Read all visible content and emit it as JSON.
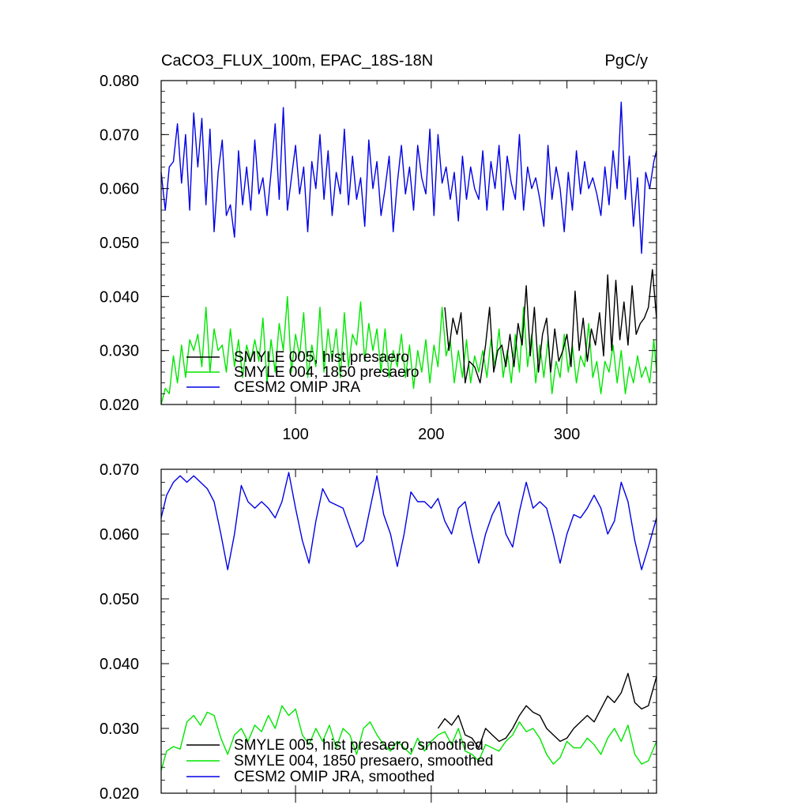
{
  "chart_data": [
    {
      "type": "line",
      "title": "CaCO3_FLUX_100m, EPAC_18S-18N",
      "units": "PgC/y",
      "xlim": [
        1,
        366
      ],
      "ylim": [
        0.02,
        0.08
      ],
      "yticks": [
        0.02,
        0.03,
        0.04,
        0.05,
        0.06,
        0.07,
        0.08
      ],
      "ytick_labels": [
        "0.020",
        "0.030",
        "0.040",
        "0.050",
        "0.060",
        "0.070",
        "0.080"
      ],
      "xticks": [
        100,
        200,
        300
      ],
      "xtick_labels": [
        "100",
        "200",
        "300"
      ],
      "legend_placement": "bottom-left",
      "series": [
        {
          "name": "SMYLE 005, hist presaero",
          "color": "#000000",
          "x": [
            210,
            213,
            216,
            219,
            222,
            225,
            228,
            232,
            236,
            240,
            243,
            246,
            249,
            252,
            255,
            258,
            261,
            264,
            267,
            270,
            273,
            276,
            279,
            282,
            285,
            288,
            291,
            294,
            297,
            300,
            303,
            306,
            309,
            312,
            315,
            318,
            321,
            324,
            327,
            330,
            333,
            336,
            339,
            342,
            345,
            348,
            351,
            354,
            357,
            360,
            363,
            366
          ],
          "values": [
            0.038,
            0.03,
            0.036,
            0.033,
            0.037,
            0.024,
            0.028,
            0.027,
            0.024,
            0.031,
            0.038,
            0.026,
            0.03,
            0.031,
            0.027,
            0.033,
            0.027,
            0.035,
            0.031,
            0.042,
            0.029,
            0.038,
            0.026,
            0.033,
            0.036,
            0.026,
            0.034,
            0.028,
            0.03,
            0.033,
            0.027,
            0.041,
            0.03,
            0.036,
            0.028,
            0.034,
            0.031,
            0.037,
            0.029,
            0.044,
            0.03,
            0.043,
            0.032,
            0.039,
            0.031,
            0.042,
            0.033,
            0.035,
            0.036,
            0.038,
            0.045,
            0.036
          ]
        },
        {
          "name": "SMYLE 004, 1850 presaero",
          "color": "#00e600",
          "x": [
            1,
            4,
            7,
            10,
            13,
            16,
            19,
            22,
            25,
            28,
            31,
            34,
            37,
            40,
            43,
            46,
            49,
            52,
            55,
            58,
            61,
            64,
            67,
            70,
            73,
            76,
            79,
            82,
            85,
            88,
            91,
            94,
            97,
            100,
            103,
            106,
            109,
            112,
            115,
            118,
            121,
            124,
            127,
            130,
            133,
            136,
            139,
            142,
            145,
            148,
            151,
            154,
            157,
            160,
            163,
            166,
            169,
            172,
            175,
            178,
            181,
            184,
            187,
            190,
            193,
            196,
            199,
            202,
            205,
            208,
            211,
            214,
            217,
            220,
            223,
            226,
            229,
            232,
            235,
            238,
            241,
            244,
            247,
            250,
            253,
            256,
            259,
            262,
            265,
            268,
            271,
            274,
            277,
            280,
            283,
            286,
            289,
            292,
            295,
            298,
            301,
            304,
            307,
            310,
            313,
            316,
            319,
            322,
            325,
            328,
            331,
            334,
            337,
            340,
            343,
            346,
            349,
            352,
            355,
            358,
            361,
            364,
            366
          ],
          "values": [
            0.02,
            0.023,
            0.022,
            0.029,
            0.024,
            0.031,
            0.025,
            0.032,
            0.03,
            0.033,
            0.027,
            0.038,
            0.026,
            0.034,
            0.03,
            0.031,
            0.026,
            0.034,
            0.027,
            0.032,
            0.025,
            0.031,
            0.028,
            0.032,
            0.028,
            0.036,
            0.024,
            0.032,
            0.026,
            0.035,
            0.03,
            0.04,
            0.026,
            0.033,
            0.029,
            0.037,
            0.025,
            0.031,
            0.027,
            0.038,
            0.026,
            0.034,
            0.028,
            0.034,
            0.025,
            0.037,
            0.027,
            0.033,
            0.031,
            0.039,
            0.028,
            0.035,
            0.03,
            0.034,
            0.026,
            0.034,
            0.025,
            0.03,
            0.027,
            0.033,
            0.025,
            0.031,
            0.023,
            0.03,
            0.026,
            0.032,
            0.024,
            0.031,
            0.027,
            0.038,
            0.029,
            0.032,
            0.024,
            0.03,
            0.025,
            0.032,
            0.024,
            0.029,
            0.026,
            0.03,
            0.025,
            0.032,
            0.027,
            0.034,
            0.025,
            0.03,
            0.024,
            0.033,
            0.026,
            0.038,
            0.027,
            0.033,
            0.024,
            0.031,
            0.025,
            0.032,
            0.022,
            0.028,
            0.025,
            0.033,
            0.026,
            0.031,
            0.024,
            0.029,
            0.027,
            0.035,
            0.025,
            0.028,
            0.022,
            0.028,
            0.026,
            0.031,
            0.024,
            0.03,
            0.022,
            0.027,
            0.024,
            0.029,
            0.025,
            0.027,
            0.024,
            0.032,
            0.026
          ]
        },
        {
          "name": "CESM2 OMIP JRA",
          "color": "#0000e6",
          "x": [
            1,
            4,
            7,
            10,
            13,
            16,
            19,
            22,
            25,
            28,
            31,
            34,
            37,
            40,
            43,
            46,
            49,
            52,
            55,
            58,
            61,
            64,
            67,
            70,
            73,
            76,
            79,
            82,
            85,
            88,
            91,
            94,
            97,
            100,
            103,
            106,
            109,
            112,
            115,
            118,
            121,
            124,
            127,
            130,
            133,
            136,
            139,
            142,
            145,
            148,
            151,
            154,
            157,
            160,
            163,
            166,
            169,
            172,
            175,
            178,
            181,
            184,
            187,
            190,
            193,
            196,
            199,
            202,
            205,
            208,
            211,
            214,
            217,
            220,
            223,
            226,
            229,
            232,
            235,
            238,
            241,
            244,
            247,
            250,
            253,
            256,
            259,
            262,
            265,
            268,
            271,
            274,
            277,
            280,
            283,
            286,
            289,
            292,
            295,
            298,
            301,
            304,
            307,
            310,
            313,
            316,
            319,
            322,
            325,
            328,
            331,
            334,
            337,
            340,
            343,
            346,
            349,
            352,
            355,
            358,
            361,
            364,
            366
          ],
          "values": [
            0.063,
            0.056,
            0.064,
            0.065,
            0.072,
            0.061,
            0.07,
            0.056,
            0.074,
            0.064,
            0.073,
            0.057,
            0.071,
            0.052,
            0.063,
            0.069,
            0.055,
            0.057,
            0.051,
            0.067,
            0.057,
            0.064,
            0.056,
            0.069,
            0.059,
            0.062,
            0.055,
            0.063,
            0.072,
            0.058,
            0.075,
            0.056,
            0.062,
            0.068,
            0.059,
            0.064,
            0.052,
            0.065,
            0.06,
            0.07,
            0.058,
            0.067,
            0.055,
            0.063,
            0.059,
            0.071,
            0.057,
            0.066,
            0.058,
            0.062,
            0.053,
            0.069,
            0.06,
            0.065,
            0.055,
            0.06,
            0.066,
            0.052,
            0.061,
            0.068,
            0.059,
            0.064,
            0.056,
            0.068,
            0.062,
            0.059,
            0.071,
            0.055,
            0.07,
            0.061,
            0.064,
            0.058,
            0.063,
            0.054,
            0.066,
            0.058,
            0.064,
            0.06,
            0.058,
            0.067,
            0.056,
            0.065,
            0.06,
            0.068,
            0.056,
            0.066,
            0.061,
            0.058,
            0.07,
            0.056,
            0.064,
            0.06,
            0.062,
            0.058,
            0.053,
            0.068,
            0.058,
            0.064,
            0.06,
            0.052,
            0.063,
            0.056,
            0.067,
            0.059,
            0.065,
            0.06,
            0.062,
            0.059,
            0.055,
            0.064,
            0.057,
            0.067,
            0.06,
            0.076,
            0.058,
            0.066,
            0.053,
            0.062,
            0.048,
            0.063,
            0.06,
            0.065,
            0.067
          ]
        }
      ]
    },
    {
      "type": "line",
      "title": "",
      "units": "",
      "xlim": [
        1,
        366
      ],
      "ylim": [
        0.02,
        0.07
      ],
      "yticks": [
        0.02,
        0.03,
        0.04,
        0.05,
        0.06,
        0.07
      ],
      "ytick_labels": [
        "0.020",
        "0.030",
        "0.040",
        "0.050",
        "0.060",
        "0.070"
      ],
      "xticks": [
        100,
        200,
        300
      ],
      "xtick_labels": [
        "",
        "",
        ""
      ],
      "legend_placement": "bottom-left",
      "series": [
        {
          "name": "SMYLE 005, hist presaero, smoothed",
          "color": "#000000",
          "x": [
            205,
            210,
            215,
            220,
            225,
            230,
            235,
            240,
            245,
            250,
            255,
            260,
            265,
            270,
            275,
            280,
            285,
            290,
            295,
            300,
            305,
            310,
            315,
            320,
            325,
            330,
            335,
            340,
            345,
            350,
            355,
            360,
            366
          ],
          "values": [
            0.03,
            0.0315,
            0.0305,
            0.032,
            0.029,
            0.0285,
            0.027,
            0.03,
            0.029,
            0.028,
            0.0285,
            0.03,
            0.032,
            0.0335,
            0.0325,
            0.032,
            0.03,
            0.029,
            0.028,
            0.0285,
            0.03,
            0.031,
            0.032,
            0.031,
            0.033,
            0.035,
            0.034,
            0.0355,
            0.0385,
            0.034,
            0.033,
            0.0335,
            0.038
          ]
        },
        {
          "name": "SMYLE 004, 1850 presaero, smoothed",
          "color": "#00e600",
          "x": [
            1,
            5,
            10,
            15,
            20,
            25,
            30,
            35,
            40,
            45,
            50,
            55,
            60,
            65,
            70,
            75,
            80,
            85,
            90,
            95,
            100,
            105,
            110,
            115,
            120,
            125,
            130,
            135,
            140,
            145,
            150,
            155,
            160,
            165,
            170,
            175,
            180,
            185,
            190,
            195,
            200,
            205,
            210,
            215,
            220,
            225,
            230,
            235,
            240,
            245,
            250,
            255,
            260,
            265,
            270,
            275,
            280,
            285,
            290,
            295,
            300,
            305,
            310,
            315,
            320,
            325,
            330,
            335,
            340,
            345,
            350,
            355,
            360,
            366
          ],
          "values": [
            0.0235,
            0.0265,
            0.0272,
            0.0268,
            0.031,
            0.032,
            0.0305,
            0.0325,
            0.032,
            0.0285,
            0.026,
            0.029,
            0.03,
            0.028,
            0.0305,
            0.0295,
            0.032,
            0.03,
            0.0335,
            0.032,
            0.033,
            0.029,
            0.0275,
            0.03,
            0.028,
            0.0305,
            0.027,
            0.03,
            0.029,
            0.026,
            0.03,
            0.031,
            0.029,
            0.0275,
            0.0265,
            0.028,
            0.027,
            0.026,
            0.0285,
            0.0265,
            0.028,
            0.029,
            0.0295,
            0.0275,
            0.03,
            0.0265,
            0.026,
            0.025,
            0.0275,
            0.027,
            0.0265,
            0.028,
            0.029,
            0.031,
            0.0295,
            0.03,
            0.0285,
            0.026,
            0.0245,
            0.0255,
            0.028,
            0.027,
            0.027,
            0.0285,
            0.0275,
            0.026,
            0.0285,
            0.03,
            0.028,
            0.0305,
            0.026,
            0.0245,
            0.025,
            0.028
          ]
        },
        {
          "name": "CESM2 OMIP JRA, smoothed",
          "color": "#0000e6",
          "x": [
            1,
            5,
            10,
            15,
            20,
            25,
            30,
            35,
            40,
            45,
            50,
            55,
            60,
            65,
            70,
            75,
            80,
            85,
            90,
            95,
            100,
            105,
            110,
            115,
            120,
            125,
            130,
            135,
            140,
            145,
            150,
            155,
            160,
            165,
            170,
            175,
            180,
            185,
            190,
            195,
            200,
            205,
            210,
            215,
            220,
            225,
            230,
            235,
            240,
            245,
            250,
            255,
            260,
            265,
            270,
            275,
            280,
            285,
            290,
            295,
            300,
            305,
            310,
            315,
            320,
            325,
            330,
            335,
            340,
            345,
            350,
            355,
            360,
            366
          ],
          "values": [
            0.0625,
            0.066,
            0.068,
            0.069,
            0.068,
            0.069,
            0.068,
            0.067,
            0.065,
            0.06,
            0.0545,
            0.06,
            0.0675,
            0.065,
            0.064,
            0.065,
            0.064,
            0.0625,
            0.065,
            0.0695,
            0.064,
            0.059,
            0.0555,
            0.062,
            0.067,
            0.065,
            0.0645,
            0.064,
            0.061,
            0.058,
            0.059,
            0.064,
            0.069,
            0.063,
            0.06,
            0.055,
            0.06,
            0.0665,
            0.065,
            0.065,
            0.064,
            0.0655,
            0.062,
            0.06,
            0.064,
            0.065,
            0.06,
            0.0555,
            0.06,
            0.063,
            0.065,
            0.06,
            0.058,
            0.0635,
            0.068,
            0.064,
            0.065,
            0.064,
            0.06,
            0.0555,
            0.06,
            0.063,
            0.0625,
            0.064,
            0.066,
            0.064,
            0.06,
            0.062,
            0.068,
            0.065,
            0.059,
            0.0545,
            0.058,
            0.0625
          ]
        }
      ]
    }
  ]
}
